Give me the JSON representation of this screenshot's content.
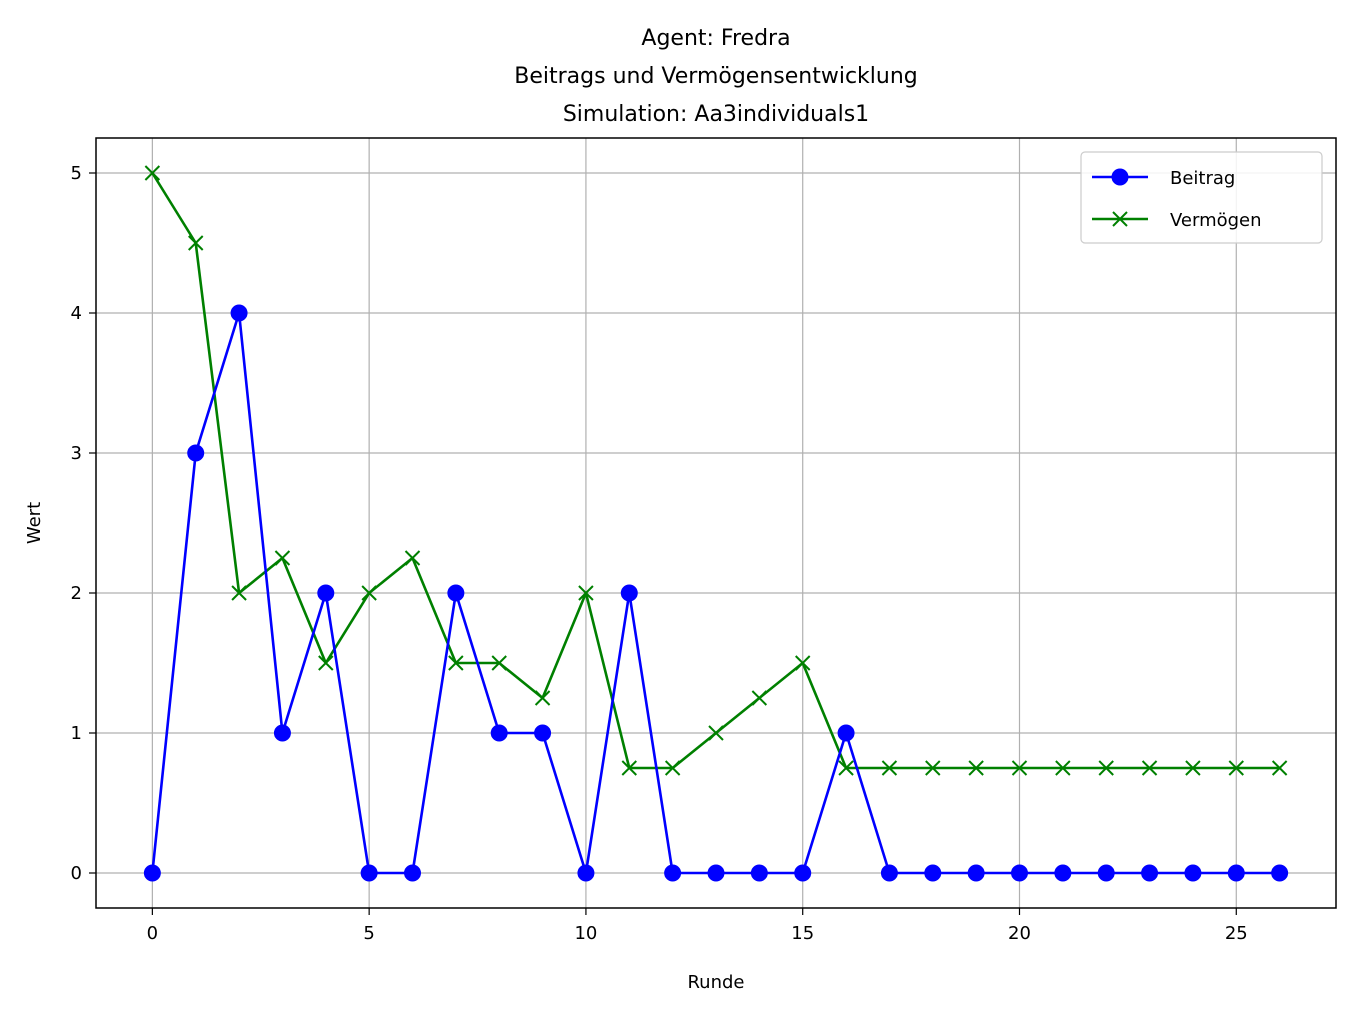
{
  "chart_data": {
    "type": "line",
    "title_lines": [
      "Agent: Fredra",
      "Beitrags und Vermögensentwicklung",
      "Simulation: Aa3individuals1"
    ],
    "xlabel": "Runde",
    "ylabel": "Wert",
    "xlim": [
      -1.3,
      27.3
    ],
    "ylim": [
      -0.25,
      5.25
    ],
    "xticks": [
      0,
      5,
      10,
      15,
      20,
      25
    ],
    "yticks": [
      0,
      1,
      2,
      3,
      4,
      5
    ],
    "grid": true,
    "legend_position": "top-right",
    "x": [
      0,
      1,
      2,
      3,
      4,
      5,
      6,
      7,
      8,
      9,
      10,
      11,
      12,
      13,
      14,
      15,
      16,
      17,
      18,
      19,
      20,
      21,
      22,
      23,
      24,
      25,
      26
    ],
    "series": [
      {
        "name": "Beitrag",
        "color": "#0000ff",
        "marker": "circle",
        "values": [
          0,
          3,
          4,
          1,
          2,
          0,
          0,
          2,
          1,
          1,
          0,
          2,
          0,
          0,
          0,
          0,
          1,
          0,
          0,
          0,
          0,
          0,
          0,
          0,
          0,
          0,
          0
        ]
      },
      {
        "name": "Vermögen",
        "color": "#008000",
        "marker": "x",
        "values": [
          5,
          4.5,
          2,
          2.25,
          1.5,
          2,
          2.25,
          1.5,
          1.5,
          1.25,
          2,
          0.75,
          0.75,
          1,
          1.25,
          1.5,
          0.75,
          0.75,
          0.75,
          0.75,
          0.75,
          0.75,
          0.75,
          0.75,
          0.75,
          0.75,
          0.75
        ]
      }
    ]
  }
}
